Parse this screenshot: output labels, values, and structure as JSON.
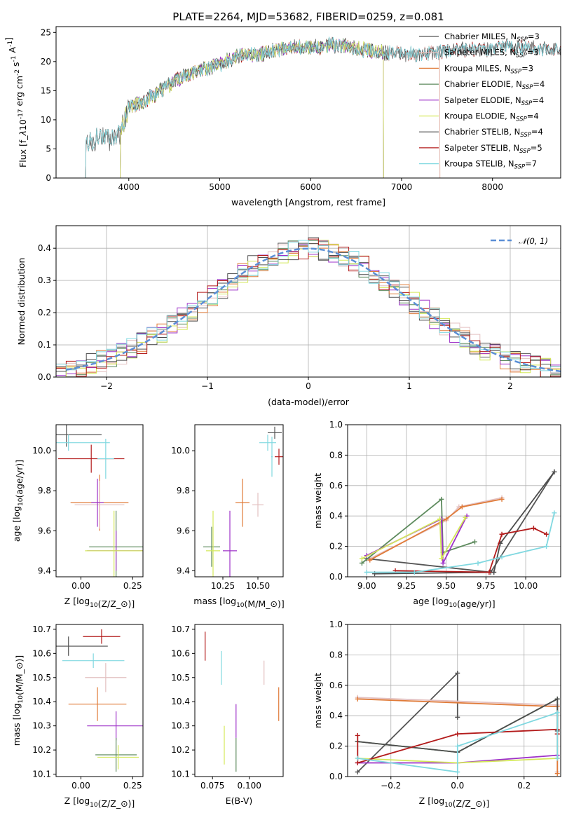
{
  "page_title": "PLATE=2264, MJD=53682, FIBERID=0259, z=0.081",
  "colors": {
    "Chabrier MILES": "#555555",
    "Salpeter MILES": "#e3c0c0",
    "Kroupa MILES": "#e07b39",
    "Chabrier ELODIE": "#5d8a5d",
    "Salpeter ELODIE": "#9e32c8",
    "Kroupa ELODIE": "#d4e85a",
    "Chabrier STELIB": "#4d4d4d",
    "Salpeter STELIB": "#b31b1b",
    "Kroupa STELIB": "#80d8e0",
    "gaussian": "#5b8fd6"
  },
  "chart_data": [
    {
      "id": "spectrum",
      "type": "line",
      "title": "PLATE=2264, MJD=53682, FIBERID=0259, z=0.081",
      "xlabel": "wavelength [Angstrom, rest frame]",
      "ylabel": "Flux [f$_\\lambda$10$^{-17}$ erg cm$^{-2}$ s$^{-1}$ A$^{-1}$]",
      "xlim": [
        3200,
        8750
      ],
      "ylim": [
        0,
        26
      ],
      "xticks": [
        "4000",
        "5000",
        "6000",
        "7000",
        "8000"
      ],
      "yticks": [
        "0",
        "5",
        "10",
        "15",
        "20",
        "25"
      ],
      "legend": [
        {
          "name": "Chabrier MILES",
          "label": "Chabrier MILES, N",
          "sub": "SSP",
          "n": "=3"
        },
        {
          "name": "Salpeter MILES",
          "label": "Salpeter MILES, N",
          "sub": "SSP",
          "n": "=3"
        },
        {
          "name": "Kroupa MILES",
          "label": "Kroupa MILES, N",
          "sub": "SSP",
          "n": "=3"
        },
        {
          "name": "Chabrier ELODIE",
          "label": "Chabrier ELODIE, N",
          "sub": "SSP",
          "n": "=4"
        },
        {
          "name": "Salpeter ELODIE",
          "label": "Salpeter ELODIE, N",
          "sub": "SSP",
          "n": "=4"
        },
        {
          "name": "Kroupa ELODIE",
          "label": "Kroupa ELODIE, N",
          "sub": "SSP",
          "n": "=4"
        },
        {
          "name": "Chabrier STELIB",
          "label": "Chabrier STELIB, N",
          "sub": "SSP",
          "n": "=4"
        },
        {
          "name": "Salpeter STELIB",
          "label": "Salpeter STELIB, N",
          "sub": "SSP",
          "n": "=5"
        },
        {
          "name": "Kroupa STELIB",
          "label": "Kroupa STELIB, N",
          "sub": "SSP",
          "n": "=7"
        }
      ],
      "legend_position": "right",
      "continuum": [
        [
          3520,
          6
        ],
        [
          3600,
          6.5
        ],
        [
          3700,
          7
        ],
        [
          3800,
          6.5
        ],
        [
          3900,
          7.5
        ],
        [
          4000,
          12
        ],
        [
          4200,
          13.5
        ],
        [
          4400,
          15.5
        ],
        [
          4600,
          17.5
        ],
        [
          4800,
          18.5
        ],
        [
          5000,
          19.5
        ],
        [
          5200,
          21
        ],
        [
          5400,
          21
        ],
        [
          5600,
          22
        ],
        [
          5800,
          22.5
        ],
        [
          6000,
          22.5
        ],
        [
          6200,
          22.8
        ],
        [
          6400,
          22.5
        ],
        [
          6600,
          22
        ],
        [
          6800,
          21.5
        ],
        [
          7000,
          21.5
        ],
        [
          7200,
          21
        ],
        [
          7400,
          21.5
        ],
        [
          7600,
          22
        ],
        [
          7800,
          22
        ],
        [
          8000,
          22
        ],
        [
          8200,
          22.5
        ],
        [
          8500,
          22.2
        ],
        [
          8750,
          22
        ]
      ]
    },
    {
      "id": "residuals",
      "type": "histogram",
      "xlabel": "(data-model)/error",
      "ylabel": "Normed distribution",
      "xlim": [
        -2.5,
        2.5
      ],
      "ylim": [
        0,
        0.47
      ],
      "xticks": [
        "−2",
        "−1",
        "0",
        "1",
        "2"
      ],
      "yticks": [
        "0.0",
        "0.1",
        "0.2",
        "0.3",
        "0.4"
      ],
      "legend": {
        "label": "𝒩(0, 1)",
        "position": "top-right"
      },
      "bin_width": 0.1,
      "grid": true
    },
    {
      "id": "age_vs_Z",
      "type": "scatter",
      "xlabel": "Z [log$_{10}$(Z/Z$_\\odot$)]",
      "ylabel": "age  [log$_{10}$(age/yr)]",
      "xlim": [
        -0.12,
        0.3
      ],
      "ylim": [
        9.37,
        10.13
      ],
      "xticks": [
        "0.00",
        "0.25"
      ],
      "yticks": [
        "9.4",
        "9.6",
        "9.8",
        "10.0"
      ],
      "points": [
        {
          "series": "Chabrier MILES",
          "x": -0.07,
          "xerr": 0.17,
          "y": 10.08,
          "yerr": 0.06
        },
        {
          "series": "Kroupa STELIB",
          "x": -0.06,
          "xerr": 0.2,
          "y": 10.04,
          "yerr": 0.04
        },
        {
          "series": "Salpeter STELIB",
          "x": 0.05,
          "xerr": 0.16,
          "y": 9.96,
          "yerr": 0.07
        },
        {
          "series": "Kroupa STELIB",
          "x": 0.12,
          "xerr": 0.04,
          "y": 9.96,
          "yerr": 0.1
        },
        {
          "series": "Kroupa MILES",
          "x": 0.09,
          "xerr": 0.14,
          "y": 9.74,
          "yerr": 0.14
        },
        {
          "series": "Salpeter MILES",
          "x": 0.09,
          "xerr": 0.12,
          "y": 9.73,
          "yerr": 0.12
        },
        {
          "series": "Salpeter ELODIE",
          "x": 0.08,
          "xerr": 0.03,
          "y": 9.74,
          "yerr": 0.12
        },
        {
          "series": "Chabrier ELODIE",
          "x": 0.17,
          "xerr": 0.13,
          "y": 9.52,
          "yerr": 0.18
        },
        {
          "series": "Salpeter ELODIE",
          "x": 0.17,
          "xerr": 0.14,
          "y": 9.5,
          "yerr": 0.1
        },
        {
          "series": "Kroupa ELODIE",
          "x": 0.16,
          "xerr": 0.14,
          "y": 9.5,
          "yerr": 0.2
        }
      ]
    },
    {
      "id": "age_vs_mass",
      "type": "scatter",
      "xlabel": "mass [log$_{10}$(M/M$_\\odot$)]",
      "ylabel": "",
      "xlim": [
        10.05,
        10.68
      ],
      "ylim": [
        9.37,
        10.13
      ],
      "xticks": [
        "10.25",
        "10.50"
      ],
      "yticks": [
        "9.4",
        "9.6",
        "9.8",
        "10.0"
      ],
      "points": [
        {
          "series": "Chabrier MILES",
          "x": 10.62,
          "xerr": 0.05,
          "y": 10.09,
          "yerr": 0.03
        },
        {
          "series": "Kroupa STELIB",
          "x": 10.57,
          "xerr": 0.06,
          "y": 10.04,
          "yerr": 0.04
        },
        {
          "series": "Salpeter STELIB",
          "x": 10.65,
          "xerr": 0.03,
          "y": 9.97,
          "yerr": 0.04
        },
        {
          "series": "Kroupa STELIB",
          "x": 10.6,
          "xerr": 0.005,
          "y": 9.97,
          "yerr": 0.1
        },
        {
          "series": "Kroupa MILES",
          "x": 10.39,
          "xerr": 0.05,
          "y": 9.74,
          "yerr": 0.12
        },
        {
          "series": "Salpeter MILES",
          "x": 10.5,
          "xerr": 0.04,
          "y": 9.73,
          "yerr": 0.06
        },
        {
          "series": "Chabrier ELODIE",
          "x": 10.17,
          "xerr": 0.06,
          "y": 9.52,
          "yerr": 0.1
        },
        {
          "series": "Salpeter ELODIE",
          "x": 10.3,
          "xerr": 0.05,
          "y": 9.5,
          "yerr": 0.2
        },
        {
          "series": "Kroupa ELODIE",
          "x": 10.18,
          "xerr": 0.05,
          "y": 9.5,
          "yerr": 0.2
        }
      ]
    },
    {
      "id": "weights_vs_age",
      "type": "line",
      "xlabel": "age  [log$_{10}$(age/yr)]",
      "ylabel": "mass weight",
      "xlim": [
        8.88,
        10.22
      ],
      "ylim": [
        0,
        1
      ],
      "xticks": [
        "9.00",
        "9.25",
        "9.50",
        "9.75",
        "10.00"
      ],
      "yticks": [
        "0.0",
        "0.2",
        "0.4",
        "0.6",
        "0.8",
        "1.0"
      ],
      "grid": true,
      "series": [
        {
          "name": "Chabrier MILES",
          "x": [
            9.0,
            9.78,
            10.18
          ],
          "y": [
            0.12,
            0.03,
            0.69
          ]
        },
        {
          "name": "Salpeter MILES",
          "x": [
            9.02,
            9.5,
            9.58,
            9.85
          ],
          "y": [
            0.12,
            0.37,
            0.46,
            0.52
          ]
        },
        {
          "name": "Kroupa MILES",
          "x": [
            9.02,
            9.5,
            9.6,
            9.85
          ],
          "y": [
            0.11,
            0.38,
            0.46,
            0.51
          ]
        },
        {
          "name": "Chabrier ELODIE",
          "x": [
            8.97,
            9.47,
            9.48,
            9.68
          ],
          "y": [
            0.09,
            0.51,
            0.16,
            0.23
          ]
        },
        {
          "name": "Salpeter ELODIE",
          "x": [
            9.0,
            9.47,
            9.48,
            9.63
          ],
          "y": [
            0.14,
            0.38,
            0.09,
            0.4
          ]
        },
        {
          "name": "Kroupa ELODIE",
          "x": [
            8.97,
            9.46,
            9.47,
            9.62
          ],
          "y": [
            0.12,
            0.38,
            0.12,
            0.39
          ]
        },
        {
          "name": "Chabrier STELIB",
          "x": [
            9.05,
            9.8,
            9.84,
            10.18
          ],
          "y": [
            0.02,
            0.03,
            0.22,
            0.69
          ]
        },
        {
          "name": "Salpeter STELIB",
          "x": [
            9.18,
            9.77,
            9.85,
            10.05,
            10.13
          ],
          "y": [
            0.04,
            0.03,
            0.28,
            0.32,
            0.28
          ]
        },
        {
          "name": "Kroupa STELIB",
          "x": [
            9.0,
            9.3,
            9.7,
            9.85,
            10.13,
            10.18
          ],
          "y": [
            0.03,
            0.03,
            0.09,
            0.13,
            0.2,
            0.42
          ]
        }
      ]
    },
    {
      "id": "mass_vs_Z",
      "type": "scatter",
      "xlabel": "Z [log$_{10}$(Z/Z$_\\odot$)]",
      "ylabel": "mass [log$_{10}$(M/M$_\\odot$)]",
      "xlim": [
        -0.12,
        0.3
      ],
      "ylim": [
        10.09,
        10.72
      ],
      "xticks": [
        "0.00",
        "0.25"
      ],
      "yticks": [
        "10.1",
        "10.2",
        "10.3",
        "10.4",
        "10.5",
        "10.6",
        "10.7"
      ],
      "points": [
        {
          "series": "Salpeter STELIB",
          "x": 0.1,
          "xerr": 0.09,
          "y": 10.67,
          "yerr": 0.03
        },
        {
          "series": "Chabrier MILES",
          "x": -0.06,
          "xerr": 0.19,
          "y": 10.63,
          "yerr": 0.04
        },
        {
          "series": "Kroupa STELIB",
          "x": 0.06,
          "xerr": 0.15,
          "y": 10.57,
          "yerr": 0.03
        },
        {
          "series": "Salpeter MILES",
          "x": 0.12,
          "xerr": 0.1,
          "y": 10.5,
          "yerr": 0.06
        },
        {
          "series": "Kroupa MILES",
          "x": 0.08,
          "xerr": 0.14,
          "y": 10.39,
          "yerr": 0.07
        },
        {
          "series": "Salpeter ELODIE",
          "x": 0.17,
          "xerr": 0.14,
          "y": 10.3,
          "yerr": 0.06
        },
        {
          "series": "Chabrier ELODIE",
          "x": 0.17,
          "xerr": 0.1,
          "y": 10.18,
          "yerr": 0.07
        },
        {
          "series": "Kroupa ELODIE",
          "x": 0.18,
          "xerr": 0.1,
          "y": 10.17,
          "yerr": 0.05
        }
      ]
    },
    {
      "id": "mass_vs_ebv",
      "type": "scatter",
      "xlabel": "E(B-V)",
      "ylabel": "",
      "xlim": [
        0.063,
        0.123
      ],
      "ylim": [
        10.09,
        10.72
      ],
      "xticks": [
        "0.075",
        "0.100"
      ],
      "yticks": [
        "10.1",
        "10.2",
        "10.3",
        "10.4",
        "10.5",
        "10.6",
        "10.7"
      ],
      "points": [
        {
          "series": "Salpeter STELIB",
          "x": 0.07,
          "y": 10.63,
          "yerr": 0.06
        },
        {
          "series": "Kroupa STELIB",
          "x": 0.081,
          "y": 10.54,
          "yerr": 0.07
        },
        {
          "series": "Salpeter MILES",
          "x": 0.11,
          "y": 10.52,
          "yerr": 0.05
        },
        {
          "series": "Kroupa MILES",
          "x": 0.12,
          "y": 10.39,
          "yerr": 0.07
        },
        {
          "series": "Salpeter ELODIE",
          "x": 0.091,
          "y": 10.32,
          "yerr": 0.07
        },
        {
          "series": "Kroupa ELODIE",
          "x": 0.083,
          "y": 10.22,
          "yerr": 0.08
        },
        {
          "series": "Chabrier ELODIE",
          "x": 0.091,
          "y": 10.18,
          "yerr": 0.07
        }
      ]
    },
    {
      "id": "weights_vs_Z",
      "type": "line",
      "xlabel": "Z [log$_{10}$(Z/Z$_\\odot$)]",
      "ylabel": "mass weight",
      "xlim": [
        -0.33,
        0.31
      ],
      "ylim": [
        0,
        1
      ],
      "xticks": [
        "−0.2",
        "0.0",
        "0.2"
      ],
      "yticks": [
        "0.0",
        "0.2",
        "0.4",
        "0.6",
        "0.8",
        "1.0"
      ],
      "grid": true,
      "series": [
        {
          "name": "Chabrier MILES",
          "x": [
            -0.3,
            0.0,
            0.0
          ],
          "y": [
            0.03,
            0.68,
            0.39
          ]
        },
        {
          "name": "Salpeter MILES",
          "x": [
            -0.3,
            0.3,
            0.3
          ],
          "y": [
            0.52,
            0.47,
            0.03
          ]
        },
        {
          "name": "Kroupa MILES",
          "x": [
            -0.3,
            0.3,
            0.3
          ],
          "y": [
            0.51,
            0.46,
            0.02
          ]
        },
        {
          "name": "Chabrier ELODIE",
          "x": [
            -0.3,
            0.0,
            0.3,
            0.3
          ],
          "y": [
            0.23,
            0.16,
            0.51,
            0.28
          ]
        },
        {
          "name": "Salpeter ELODIE",
          "x": [
            -0.3,
            0.0,
            0.3,
            0.3
          ],
          "y": [
            0.09,
            0.09,
            0.14,
            0.12
          ]
        },
        {
          "name": "Kroupa ELODIE",
          "x": [
            -0.3,
            0.0,
            0.3
          ],
          "y": [
            0.12,
            0.09,
            0.12
          ]
        },
        {
          "name": "Chabrier STELIB",
          "x": [
            -0.3,
            0.0,
            0.3,
            0.3
          ],
          "y": [
            0.23,
            0.16,
            0.51,
            0.3
          ]
        },
        {
          "name": "Salpeter STELIB",
          "x": [
            -0.3,
            -0.3,
            0.0,
            0.3,
            0.3
          ],
          "y": [
            0.27,
            0.09,
            0.28,
            0.31,
            0.28
          ]
        },
        {
          "name": "Kroupa STELIB",
          "x": [
            -0.3,
            0.0,
            0.0,
            0.3,
            0.3
          ],
          "y": [
            0.12,
            0.03,
            0.2,
            0.42,
            0.12
          ]
        }
      ]
    }
  ]
}
